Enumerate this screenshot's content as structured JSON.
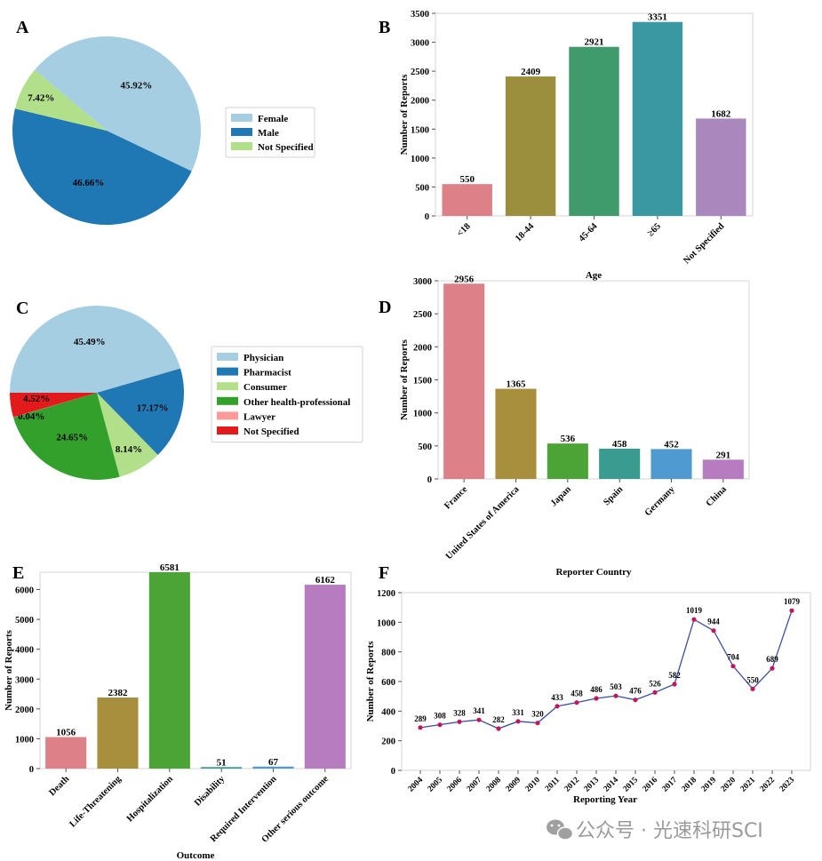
{
  "watermark": {
    "text": "公众号 · 光速科研SCI",
    "icon": "wechat-icon"
  },
  "chart_data": [
    {
      "id": "A",
      "type": "pie",
      "panel_label": "A",
      "categories": [
        "Female",
        "Male",
        "Not Specified"
      ],
      "values": [
        45.92,
        46.66,
        7.42
      ],
      "value_labels": [
        "45.92%",
        "46.66%",
        "7.42%"
      ],
      "colors": [
        "#a6cee3",
        "#1f78b4",
        "#b2df8a"
      ],
      "legend_position": "right"
    },
    {
      "id": "B",
      "type": "bar",
      "panel_label": "B",
      "categories": [
        "<18",
        "18-44",
        "45-64",
        "≥65",
        "Not Specified"
      ],
      "values": [
        550,
        2409,
        2921,
        3351,
        1682
      ],
      "colors": [
        "#dd8088",
        "#9b8f3e",
        "#3f9a6c",
        "#3a98a3",
        "#aa88bd"
      ],
      "xlabel": "Age",
      "ylabel": "Number of Reports",
      "ylim": [
        0,
        3500
      ],
      "yticks": [
        0,
        500,
        1000,
        1500,
        2000,
        2500,
        3000,
        3500
      ]
    },
    {
      "id": "C",
      "type": "pie",
      "panel_label": "C",
      "categories": [
        "Physician",
        "Pharmacist",
        "Consumer",
        "Other health-professional",
        "Lawyer",
        "Not Specified"
      ],
      "values": [
        45.49,
        17.17,
        8.14,
        24.65,
        0.04,
        4.52
      ],
      "value_labels": [
        "45.49%",
        "17.17%",
        "8.14%",
        "24.65%",
        "0.04%",
        "4.52%"
      ],
      "colors": [
        "#a6cee3",
        "#1f78b4",
        "#b2df8a",
        "#33a02c",
        "#fb9a99",
        "#e31a1c"
      ],
      "legend_position": "right"
    },
    {
      "id": "D",
      "type": "bar",
      "panel_label": "D",
      "categories": [
        "France",
        "United States of America",
        "Japan",
        "Spain",
        "Germany",
        "China"
      ],
      "values": [
        2956,
        1365,
        536,
        458,
        452,
        291
      ],
      "colors": [
        "#dd8088",
        "#a88f3e",
        "#4ca437",
        "#3a9c91",
        "#4f9bd1",
        "#b77bc0"
      ],
      "xlabel": "Reporter Country",
      "ylabel": "Number of Reports",
      "ylim": [
        0,
        3000
      ],
      "yticks": [
        0,
        500,
        1000,
        1500,
        2000,
        2500,
        3000
      ]
    },
    {
      "id": "E",
      "type": "bar",
      "panel_label": "E",
      "categories": [
        "Death",
        "Life-Threatening",
        "Hospitalization",
        "Disability",
        "Required Intervention",
        "Other serious outcome"
      ],
      "values": [
        1056,
        2382,
        6581,
        51,
        67,
        6162
      ],
      "colors": [
        "#dd8088",
        "#a88f3e",
        "#4ca437",
        "#3a9c91",
        "#4f9bd1",
        "#b77bc0"
      ],
      "xlabel": "Outcome",
      "ylabel": "Number of Reports",
      "ylim": [
        0,
        6581
      ],
      "yticks": [
        0,
        1000,
        2000,
        3000,
        4000,
        5000,
        6000
      ]
    },
    {
      "id": "F",
      "type": "line",
      "panel_label": "F",
      "x": [
        "2004",
        "2005",
        "2006",
        "2007",
        "2008",
        "2009",
        "2010",
        "2011",
        "2012",
        "2013",
        "2014",
        "2015",
        "2016",
        "2017",
        "2018",
        "2019",
        "2020",
        "2021",
        "2022",
        "2023"
      ],
      "values": [
        289,
        308,
        328,
        341,
        282,
        331,
        320,
        433,
        458,
        486,
        503,
        476,
        526,
        582,
        1019,
        944,
        704,
        550,
        689,
        1079
      ],
      "line_color": "#3a4f9e",
      "marker_color": "#c2185b",
      "xlabel": "Reporting Year",
      "ylabel": "Number of Reports",
      "ylim": [
        0,
        1200
      ],
      "yticks": [
        0,
        200,
        400,
        600,
        800,
        1000,
        1200
      ]
    }
  ]
}
